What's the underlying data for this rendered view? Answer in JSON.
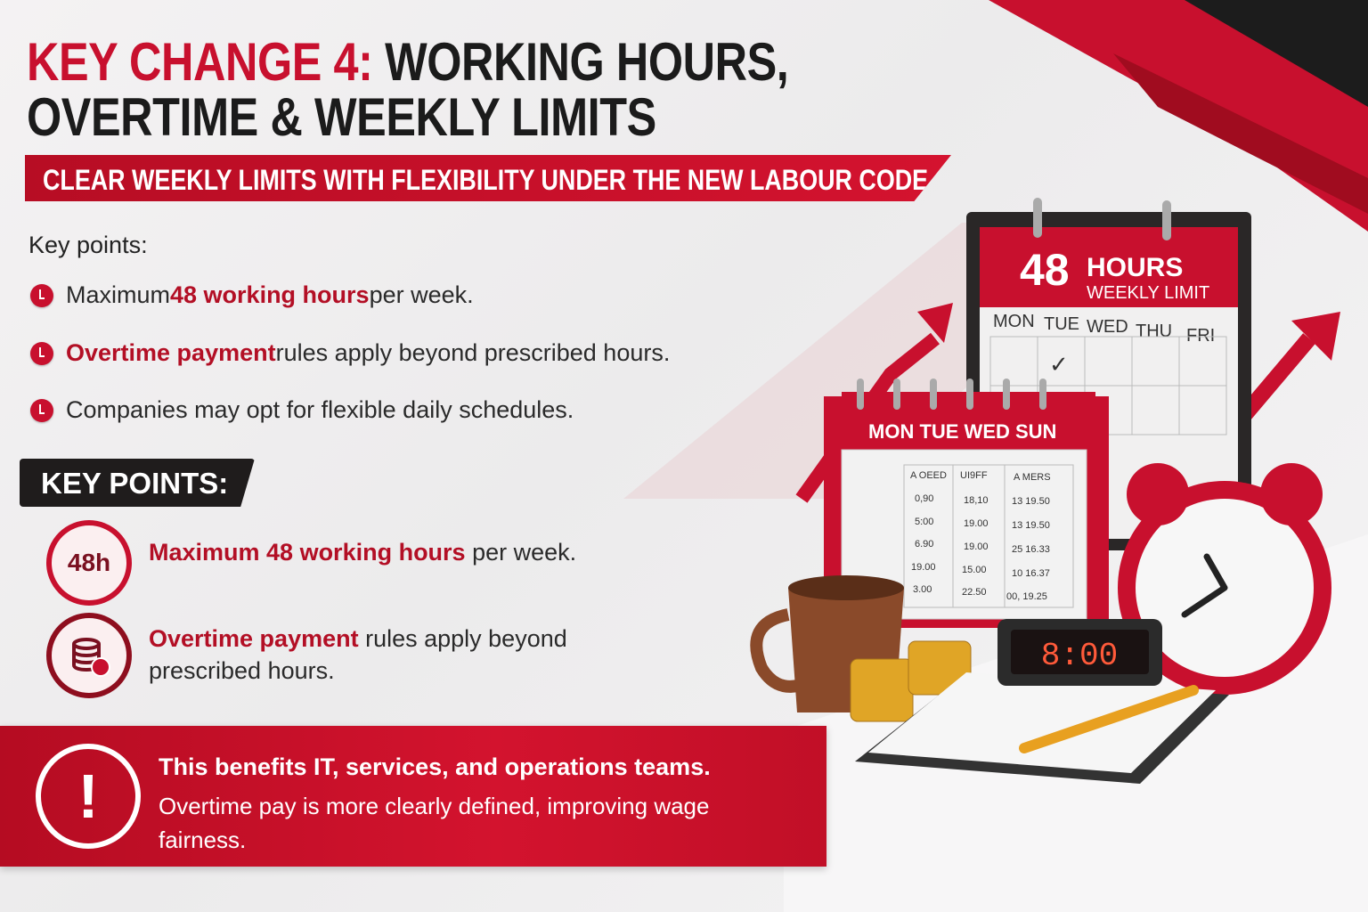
{
  "title": {
    "highlight": "KEY CHANGE 4:",
    "line1_rest": " WORKING HOURS,",
    "line2": "OVERTIME & WEEKLY LIMITS"
  },
  "banner": "CLEAR WEEKLY LIMITS WITH FLEXIBILITY UNDER THE NEW LABOUR CODE",
  "key_points_label": "Key points:",
  "bullets": [
    {
      "pre": "Maximum ",
      "em": "48 working hours",
      "post": " per week."
    },
    {
      "pre": "",
      "em": "Overtime payment",
      "post": " rules apply beyond prescribed hours."
    },
    {
      "pre": "",
      "em": "",
      "post": "Companies may opt for flexible daily schedules."
    }
  ],
  "key_points_header": "KEY POINTS:",
  "icon_points": [
    {
      "icon": "clock-48h-icon",
      "icon_text": "48h",
      "em": "Maximum 48 working hours",
      "post": " per week."
    },
    {
      "icon": "coins-stack-icon",
      "em": "Overtime payment",
      "post": " rules apply beyond",
      "line2": "prescribed hours."
    }
  ],
  "callout": {
    "icon": "exclamation-icon",
    "icon_text": "!",
    "line1": "This benefits IT, services, and operations teams.",
    "line2": "Overtime pay is more clearly defined, improving wage",
    "line3": "fairness."
  },
  "illustration": {
    "big_calendar": {
      "number": "48",
      "hours": "HOURS",
      "subtitle": "WEEKLY LIMIT",
      "days": [
        "MON",
        "TUE",
        "WED",
        "THU",
        "FRI"
      ],
      "check": "✓"
    },
    "small_calendar": {
      "header": "MON TUE WED SUN",
      "columns": [
        "A OEED",
        "UI9FF",
        "A MERS"
      ],
      "rows": [
        [
          "0,90",
          "18,10",
          "13 19.50"
        ],
        [
          "5:00",
          "19.00",
          "13 19.50"
        ],
        [
          "6.90",
          "19.00",
          "25 16.33"
        ],
        [
          "19.00",
          "15.00",
          "10 16.37"
        ],
        [
          "3.00",
          "22.50",
          "00, 19.25"
        ]
      ]
    },
    "digital_clock": "8:00"
  },
  "colors": {
    "accent": "#c8102e",
    "dark": "#1b1b1b",
    "background": "#f0eff0"
  }
}
